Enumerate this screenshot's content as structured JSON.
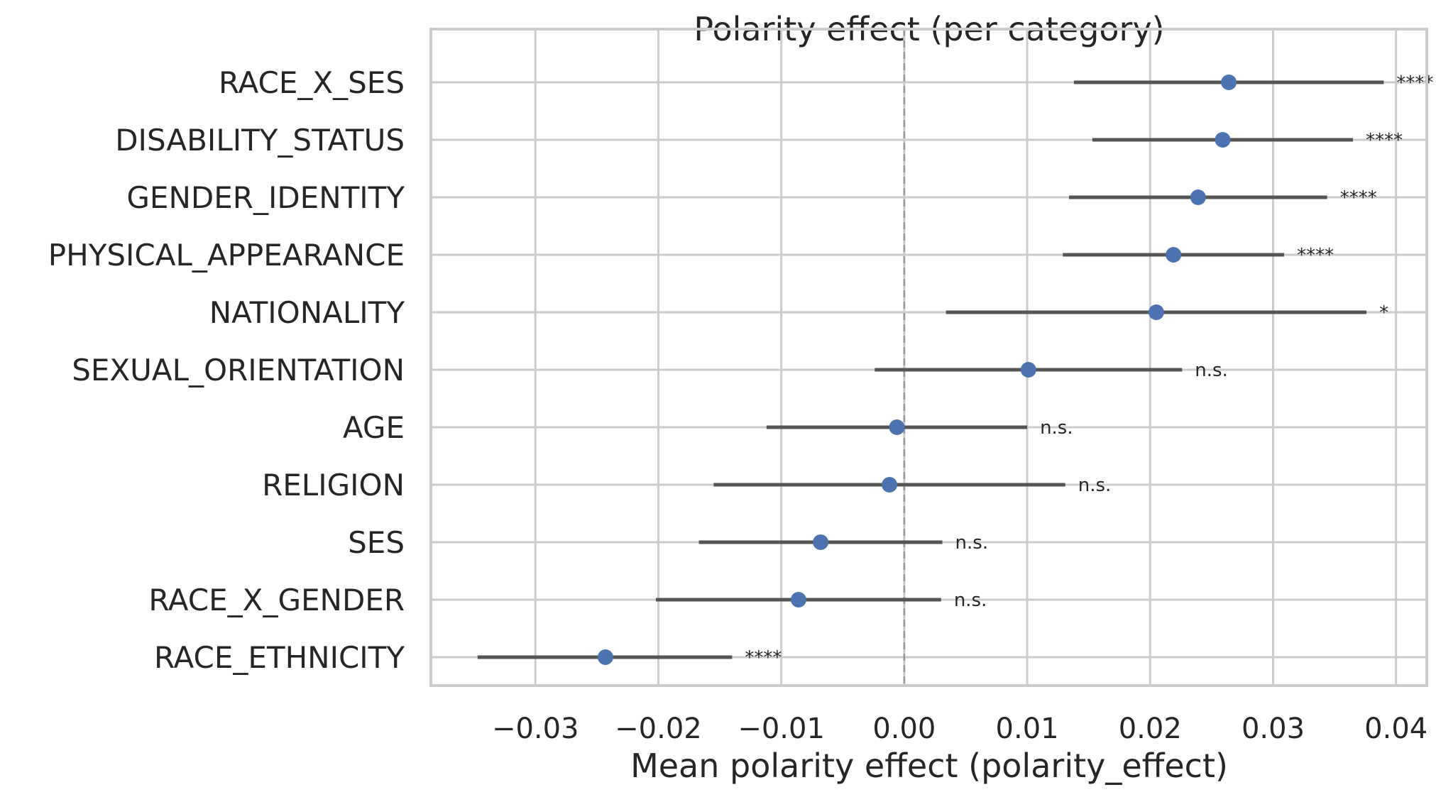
{
  "chart_data": {
    "type": "scatter",
    "title": "Polarity effect (per category)",
    "xlabel": "Mean polarity effect (polarity_effect)",
    "ylabel": "",
    "xlim": [
      -0.0385,
      0.0425
    ],
    "xticks": [
      -0.03,
      -0.02,
      -0.01,
      0.0,
      0.01,
      0.02,
      0.03,
      0.04
    ],
    "xtick_labels": [
      "−0.03",
      "−0.02",
      "−0.01",
      "0.00",
      "0.01",
      "0.02",
      "0.03",
      "0.04"
    ],
    "grid": true,
    "reference_line": 0.0,
    "colors": {
      "point": "#4c72b0",
      "errorbar": "#555555",
      "grid": "#cccccc",
      "refline": "#999999"
    },
    "categories": [
      "RACE_X_SES",
      "DISABILITY_STATUS",
      "GENDER_IDENTITY",
      "PHYSICAL_APPEARANCE",
      "NATIONALITY",
      "SEXUAL_ORIENTATION",
      "AGE",
      "RELIGION",
      "SES",
      "RACE_X_GENDER",
      "RACE_ETHNICITY"
    ],
    "points": [
      {
        "category": "RACE_X_SES",
        "mean": 0.0264,
        "ci_low": 0.0138,
        "ci_high": 0.039,
        "sig": "****"
      },
      {
        "category": "DISABILITY_STATUS",
        "mean": 0.0259,
        "ci_low": 0.0153,
        "ci_high": 0.0365,
        "sig": "****"
      },
      {
        "category": "GENDER_IDENTITY",
        "mean": 0.0239,
        "ci_low": 0.0134,
        "ci_high": 0.0344,
        "sig": "****"
      },
      {
        "category": "PHYSICAL_APPEARANCE",
        "mean": 0.0219,
        "ci_low": 0.0129,
        "ci_high": 0.0309,
        "sig": "****"
      },
      {
        "category": "NATIONALITY",
        "mean": 0.0205,
        "ci_low": 0.0034,
        "ci_high": 0.0376,
        "sig": "*"
      },
      {
        "category": "SEXUAL_ORIENTATION",
        "mean": 0.0101,
        "ci_low": -0.0024,
        "ci_high": 0.0226,
        "sig": "n.s."
      },
      {
        "category": "AGE",
        "mean": -0.0006,
        "ci_low": -0.0112,
        "ci_high": 0.01,
        "sig": "n.s."
      },
      {
        "category": "RELIGION",
        "mean": -0.0012,
        "ci_low": -0.0155,
        "ci_high": 0.0131,
        "sig": "n.s."
      },
      {
        "category": "SES",
        "mean": -0.0068,
        "ci_low": -0.0167,
        "ci_high": 0.0031,
        "sig": "n.s."
      },
      {
        "category": "RACE_X_GENDER",
        "mean": -0.0086,
        "ci_low": -0.0202,
        "ci_high": 0.003,
        "sig": "n.s."
      },
      {
        "category": "RACE_ETHNICITY",
        "mean": -0.0243,
        "ci_low": -0.0347,
        "ci_high": -0.014,
        "sig": "****"
      }
    ]
  }
}
